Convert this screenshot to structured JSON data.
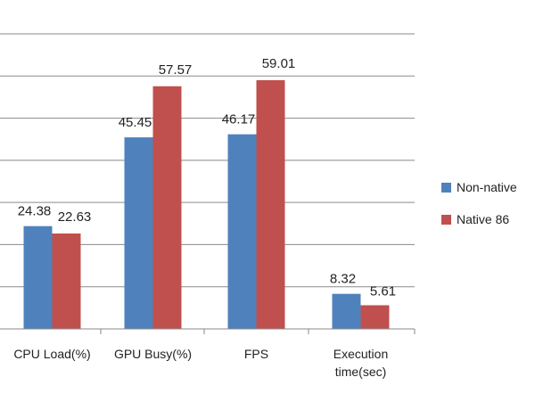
{
  "chart_data": {
    "type": "bar",
    "categories": [
      [
        "CPU Load(%)"
      ],
      [
        "GPU Busy(%)"
      ],
      [
        "FPS"
      ],
      [
        "Execution",
        "time(sec)"
      ]
    ],
    "series": [
      {
        "name": "Non-native",
        "values": [
          24.38,
          45.45,
          46.17,
          8.32
        ],
        "color": "#4F81BD"
      },
      {
        "name": "Native 86",
        "values": [
          22.63,
          57.57,
          59.01,
          5.61
        ],
        "color": "#C0504D"
      }
    ],
    "ylim": [
      0,
      70
    ],
    "grid": true,
    "legend": "right"
  }
}
